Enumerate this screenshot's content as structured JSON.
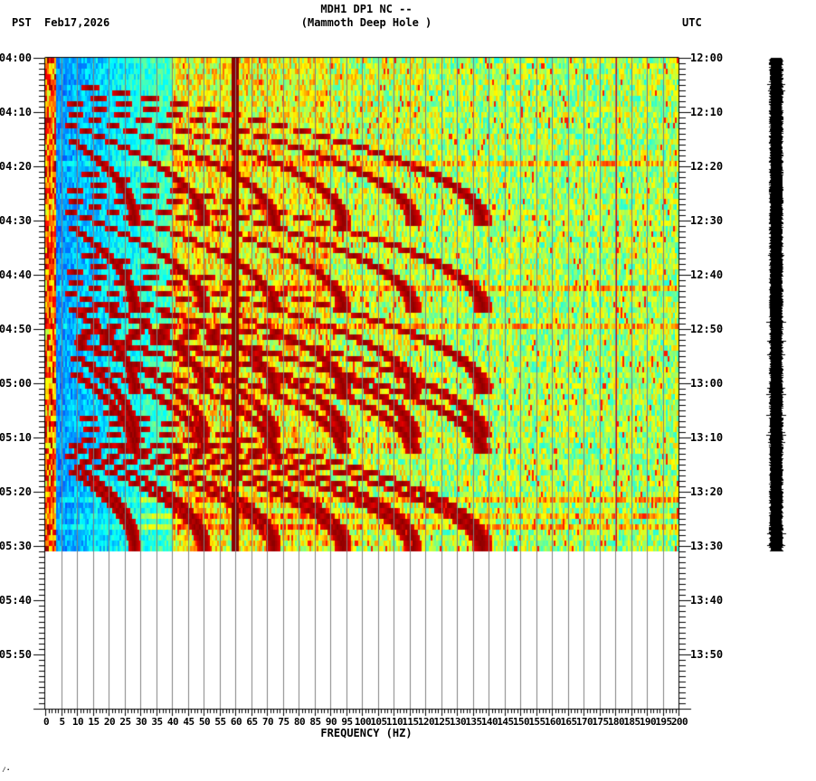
{
  "header": {
    "station_line": "MDH1 DP1 NC --",
    "site_line": "(Mammoth Deep Hole )",
    "left_timezone": "PST",
    "date": "Feb17,2026",
    "right_timezone": "UTC"
  },
  "corner_mark": "⁄·",
  "colors": {
    "background": "#ffffff",
    "axis": "#000000",
    "gridline": "#808080",
    "trace": "#000000",
    "colormap": [
      "#0000aa",
      "#0050ff",
      "#00a0ff",
      "#00ffff",
      "#80ff80",
      "#ffff00",
      "#ff8000",
      "#ff0000",
      "#8b0000"
    ]
  },
  "chart_data": {
    "type": "heatmap",
    "title": "MDH1 DP1 NC -- (Mammoth Deep Hole )",
    "xlabel": "FREQUENCY (HZ)",
    "ylabel_left": "PST",
    "ylabel_right": "UTC",
    "xlim": [
      0,
      200
    ],
    "x_ticks": [
      0,
      5,
      10,
      15,
      20,
      25,
      30,
      35,
      40,
      45,
      50,
      55,
      60,
      65,
      70,
      75,
      80,
      85,
      90,
      95,
      100,
      105,
      110,
      115,
      120,
      125,
      130,
      135,
      140,
      145,
      150,
      155,
      160,
      165,
      170,
      175,
      180,
      185,
      190,
      195,
      200
    ],
    "x_minor_tick_step": 1,
    "grid": "vertical every 5 Hz",
    "y_ticks_left": [
      "04:00",
      "04:10",
      "04:20",
      "04:30",
      "04:40",
      "04:50",
      "05:00",
      "05:10",
      "05:20",
      "05:30",
      "05:40",
      "05:50"
    ],
    "y_ticks_right": [
      "12:00",
      "12:10",
      "12:20",
      "12:30",
      "12:40",
      "12:50",
      "13:00",
      "13:10",
      "13:20",
      "13:30",
      "13:40",
      "13:50"
    ],
    "y_minor_tick_step_min": 1,
    "time_range_left": [
      "04:00",
      "06:00"
    ],
    "data_end_left": "05:31",
    "persistent_lines_hz": [
      60,
      180
    ],
    "features": "Repeating curved (Doppler-like) harmonic chirps roughly every 20-25 minutes, sweeping upward in frequency with harmonics across 20-150 Hz; broadband low-frequency energy near 0-3 Hz; strong continuous 60 Hz line; weaker 180 Hz line; background low (blue) below ~40 Hz and moderate (green/yellow) above.",
    "colorscale": "jet (blue=low, dark red=high)"
  },
  "trace": {
    "label": "seismogram",
    "time_start": "04:00",
    "time_end": "05:31"
  }
}
